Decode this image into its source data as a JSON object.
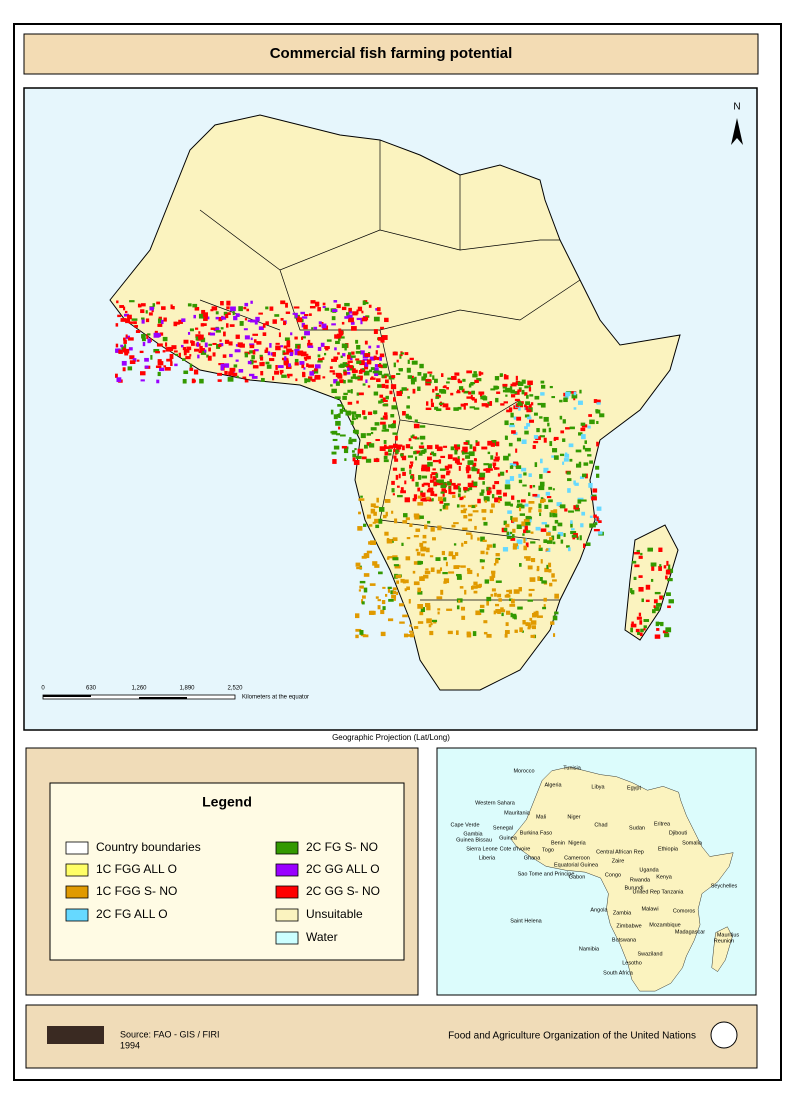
{
  "title": "Commercial fish farming potential",
  "map": {
    "north_label": "N",
    "scale_bar": {
      "ticks": [
        "0",
        "630",
        "1,260",
        "1,890",
        "2,520"
      ],
      "unit": "Kilometers at the equator"
    },
    "projection": "Geographic Projection (Lat/Long)"
  },
  "legend": {
    "title": "Legend",
    "items": [
      {
        "label": "Country boundaries",
        "color": "#ffffff"
      },
      {
        "label": "1C FGG ALL O",
        "color": "#ffff66"
      },
      {
        "label": "1C FGG S- NO",
        "color": "#e09a00"
      },
      {
        "label": "2C FG ALL O",
        "color": "#66d9ff"
      },
      {
        "label": "2C FG S- NO",
        "color": "#339900"
      },
      {
        "label": "2C GG ALL O",
        "color": "#9900ff"
      },
      {
        "label": "2C GG S- NO",
        "color": "#ff0000"
      },
      {
        "label": "Unsuitable",
        "color": "#fbf3bf"
      },
      {
        "label": "Water",
        "color": "#ccffff"
      }
    ]
  },
  "inset": {
    "labels": [
      "Morocco",
      "Tunisia",
      "Algeria",
      "Libya",
      "Egypt",
      "Western Sahara",
      "Mauritania",
      "Mali",
      "Niger",
      "Chad",
      "Sudan",
      "Eritrea",
      "Djibouti",
      "Somalia",
      "Ethiopia",
      "Cape Verde",
      "Gambia",
      "Guinea Bissau",
      "Senegal",
      "Guinea",
      "Sierra Leone",
      "Liberia",
      "Cote d'Ivoire",
      "Burkina Faso",
      "Ghana",
      "Togo",
      "Benin",
      "Nigeria",
      "Cameroon",
      "Equatorial Guinea",
      "Central African Rep",
      "Sao Tome and Principe",
      "Gabon",
      "Congo",
      "Zaire",
      "Uganda",
      "Kenya",
      "Rwanda",
      "Burundi",
      "United Rep Tanzania",
      "Seychelles",
      "Angola",
      "Zambia",
      "Malawi",
      "Comoros",
      "Mozambique",
      "Zimbabwe",
      "Madagascar",
      "Mauritius",
      "Reunion",
      "Namibia",
      "Botswana",
      "Saint Helena",
      "Swaziland",
      "Lesotho",
      "South Africa"
    ]
  },
  "footer": {
    "source": "Source: FAO - GIS / FIRI",
    "year": "1994",
    "organization": "Food and Agriculture Organization of the United Nations"
  }
}
